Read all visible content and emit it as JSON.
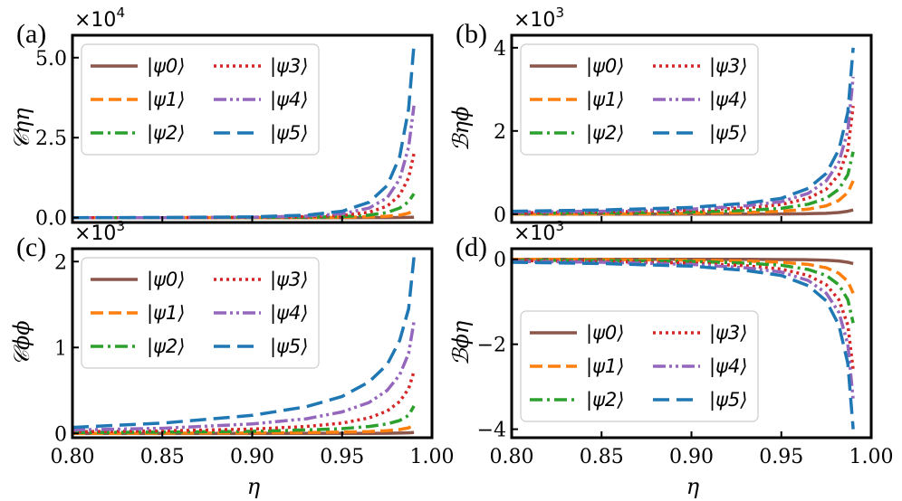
{
  "figure": {
    "xlabel": "η"
  },
  "chart_data": [
    {
      "type": "line",
      "label": "(a)",
      "ylabel": "𝒞ηη",
      "exponent": {
        "base": "×10",
        "power": "4"
      },
      "xlim": [
        0.8,
        1.0
      ],
      "ylim": [
        -0.15,
        5.7
      ],
      "xticks": [
        "0.80",
        "0.85",
        "0.90",
        "0.95",
        "1.00"
      ],
      "yticks": [
        {
          "value": 0.0,
          "label": "0.0"
        },
        {
          "value": 2.5,
          "label": "2.5"
        },
        {
          "value": 5.0,
          "label": "5.0"
        }
      ],
      "legend_position": "upper-left",
      "x": [
        0.8,
        0.85,
        0.9,
        0.93,
        0.95,
        0.965,
        0.975,
        0.982,
        0.987,
        0.99
      ],
      "series": [
        {
          "name": "|ψ0⟩",
          "values": [
            0.0,
            0.0,
            0.0,
            0.0,
            0.0,
            0.002,
            0.003,
            0.005,
            0.008,
            0.01
          ]
        },
        {
          "name": "|ψ1⟩",
          "values": [
            0.0,
            0.0,
            0.002,
            0.006,
            0.012,
            0.025,
            0.045,
            0.08,
            0.14,
            0.22
          ]
        },
        {
          "name": "|ψ2⟩",
          "values": [
            0.0,
            0.0,
            0.005,
            0.015,
            0.035,
            0.08,
            0.16,
            0.3,
            0.5,
            0.75
          ]
        },
        {
          "name": "|ψ3⟩",
          "values": [
            0.0,
            0.0,
            0.01,
            0.03,
            0.07,
            0.17,
            0.36,
            0.7,
            1.25,
            2.0
          ]
        },
        {
          "name": "|ψ4⟩",
          "values": [
            0.0,
            0.0,
            0.015,
            0.05,
            0.12,
            0.3,
            0.62,
            1.2,
            2.2,
            3.5
          ]
        },
        {
          "name": "|ψ5⟩",
          "values": [
            0.0,
            0.005,
            0.025,
            0.08,
            0.2,
            0.48,
            1.0,
            1.9,
            3.4,
            5.4
          ]
        }
      ]
    },
    {
      "type": "line",
      "label": "(b)",
      "ylabel": "ℬηϕ",
      "exponent": {
        "base": "×10",
        "power": "3"
      },
      "xlim": [
        0.8,
        1.0
      ],
      "ylim": [
        -0.2,
        4.3
      ],
      "xticks": [
        "0.80",
        "0.85",
        "0.90",
        "0.95",
        "1.00"
      ],
      "yticks": [
        {
          "value": 0,
          "label": "0"
        },
        {
          "value": 2,
          "label": "2"
        },
        {
          "value": 4,
          "label": "4"
        }
      ],
      "legend_position": "upper-left",
      "x": [
        0.8,
        0.85,
        0.9,
        0.93,
        0.95,
        0.965,
        0.975,
        0.982,
        0.987,
        0.99
      ],
      "series": [
        {
          "name": "|ψ0⟩",
          "values": [
            0.0,
            0.0,
            0.0,
            0.0,
            0.005,
            0.01,
            0.02,
            0.04,
            0.07,
            0.1
          ]
        },
        {
          "name": "|ψ1⟩",
          "values": [
            0.0,
            0.005,
            0.02,
            0.04,
            0.07,
            0.12,
            0.2,
            0.33,
            0.52,
            0.8
          ]
        },
        {
          "name": "|ψ2⟩",
          "values": [
            0.02,
            0.03,
            0.05,
            0.09,
            0.14,
            0.24,
            0.38,
            0.6,
            0.95,
            1.5
          ]
        },
        {
          "name": "|ψ3⟩",
          "values": [
            0.03,
            0.05,
            0.09,
            0.15,
            0.23,
            0.38,
            0.6,
            0.95,
            1.55,
            2.6
          ]
        },
        {
          "name": "|ψ4⟩",
          "values": [
            0.05,
            0.07,
            0.12,
            0.2,
            0.3,
            0.5,
            0.8,
            1.25,
            2.0,
            3.3
          ]
        },
        {
          "name": "|ψ5⟩",
          "values": [
            0.07,
            0.1,
            0.16,
            0.26,
            0.38,
            0.62,
            0.98,
            1.55,
            2.45,
            4.0
          ]
        }
      ]
    },
    {
      "type": "line",
      "label": "(c)",
      "ylabel": "𝒞ϕϕ",
      "exponent": {
        "base": "×10",
        "power": "3"
      },
      "xlim": [
        0.8,
        1.0
      ],
      "ylim": [
        -0.05,
        2.15
      ],
      "xticks": [
        "0.80",
        "0.85",
        "0.90",
        "0.95",
        "1.00"
      ],
      "yticks": [
        {
          "value": 0,
          "label": "0"
        },
        {
          "value": 1,
          "label": "1"
        },
        {
          "value": 2,
          "label": "2"
        }
      ],
      "legend_position": "upper-left",
      "x": [
        0.8,
        0.85,
        0.9,
        0.93,
        0.95,
        0.965,
        0.975,
        0.982,
        0.987,
        0.99
      ],
      "series": [
        {
          "name": "|ψ0⟩",
          "values": [
            0.0,
            0.0,
            0.0,
            0.0,
            0.0,
            0.0,
            0.002,
            0.004,
            0.007,
            0.01
          ]
        },
        {
          "name": "|ψ1⟩",
          "values": [
            0.0,
            0.002,
            0.005,
            0.01,
            0.015,
            0.022,
            0.032,
            0.045,
            0.065,
            0.1
          ]
        },
        {
          "name": "|ψ2⟩",
          "values": [
            0.01,
            0.015,
            0.025,
            0.04,
            0.055,
            0.08,
            0.11,
            0.15,
            0.21,
            0.32
          ]
        },
        {
          "name": "|ψ3⟩",
          "values": [
            0.02,
            0.03,
            0.05,
            0.08,
            0.12,
            0.18,
            0.26,
            0.37,
            0.52,
            0.72
          ]
        },
        {
          "name": "|ψ4⟩",
          "values": [
            0.04,
            0.06,
            0.11,
            0.17,
            0.25,
            0.36,
            0.5,
            0.68,
            0.93,
            1.3
          ]
        },
        {
          "name": "|ψ5⟩",
          "values": [
            0.07,
            0.12,
            0.21,
            0.31,
            0.43,
            0.6,
            0.8,
            1.08,
            1.45,
            2.05
          ]
        }
      ]
    },
    {
      "type": "line",
      "label": "(d)",
      "ylabel": "ℬϕη",
      "exponent": {
        "base": "×10",
        "power": "3"
      },
      "xlim": [
        0.8,
        1.0
      ],
      "ylim": [
        -4.2,
        0.25
      ],
      "xticks": [
        "0.80",
        "0.85",
        "0.90",
        "0.95",
        "1.00"
      ],
      "yticks": [
        {
          "value": 0,
          "label": "0"
        },
        {
          "value": -2,
          "label": "−2"
        },
        {
          "value": -4,
          "label": "−4"
        }
      ],
      "legend_position": "lower-left",
      "x": [
        0.8,
        0.85,
        0.9,
        0.93,
        0.95,
        0.965,
        0.975,
        0.982,
        0.987,
        0.99
      ],
      "series": [
        {
          "name": "|ψ0⟩",
          "values": [
            0.0,
            0.0,
            0.0,
            0.0,
            -0.005,
            -0.01,
            -0.02,
            -0.04,
            -0.07,
            -0.1
          ]
        },
        {
          "name": "|ψ1⟩",
          "values": [
            0.0,
            -0.005,
            -0.02,
            -0.04,
            -0.07,
            -0.12,
            -0.2,
            -0.33,
            -0.52,
            -0.8
          ]
        },
        {
          "name": "|ψ2⟩",
          "values": [
            -0.02,
            -0.03,
            -0.05,
            -0.09,
            -0.14,
            -0.24,
            -0.38,
            -0.6,
            -0.95,
            -1.5
          ]
        },
        {
          "name": "|ψ3⟩",
          "values": [
            -0.03,
            -0.05,
            -0.09,
            -0.15,
            -0.23,
            -0.38,
            -0.6,
            -0.95,
            -1.55,
            -2.6
          ]
        },
        {
          "name": "|ψ4⟩",
          "values": [
            -0.05,
            -0.07,
            -0.12,
            -0.2,
            -0.3,
            -0.5,
            -0.8,
            -1.25,
            -2.0,
            -3.3
          ]
        },
        {
          "name": "|ψ5⟩",
          "values": [
            -0.07,
            -0.1,
            -0.16,
            -0.26,
            -0.38,
            -0.62,
            -0.98,
            -1.55,
            -2.45,
            -4.0
          ]
        }
      ]
    }
  ],
  "series_styles": [
    {
      "color": "#8c564b",
      "dash": ""
    },
    {
      "color": "#ff7f0e",
      "dash": "14,6"
    },
    {
      "color": "#2ca02c",
      "dash": "14,5,3,5"
    },
    {
      "color": "#d62728",
      "dash": "3,4"
    },
    {
      "color": "#9467bd",
      "dash": "14,4,3,4,3,4"
    },
    {
      "color": "#1f77b4",
      "dash": "18,8"
    }
  ]
}
